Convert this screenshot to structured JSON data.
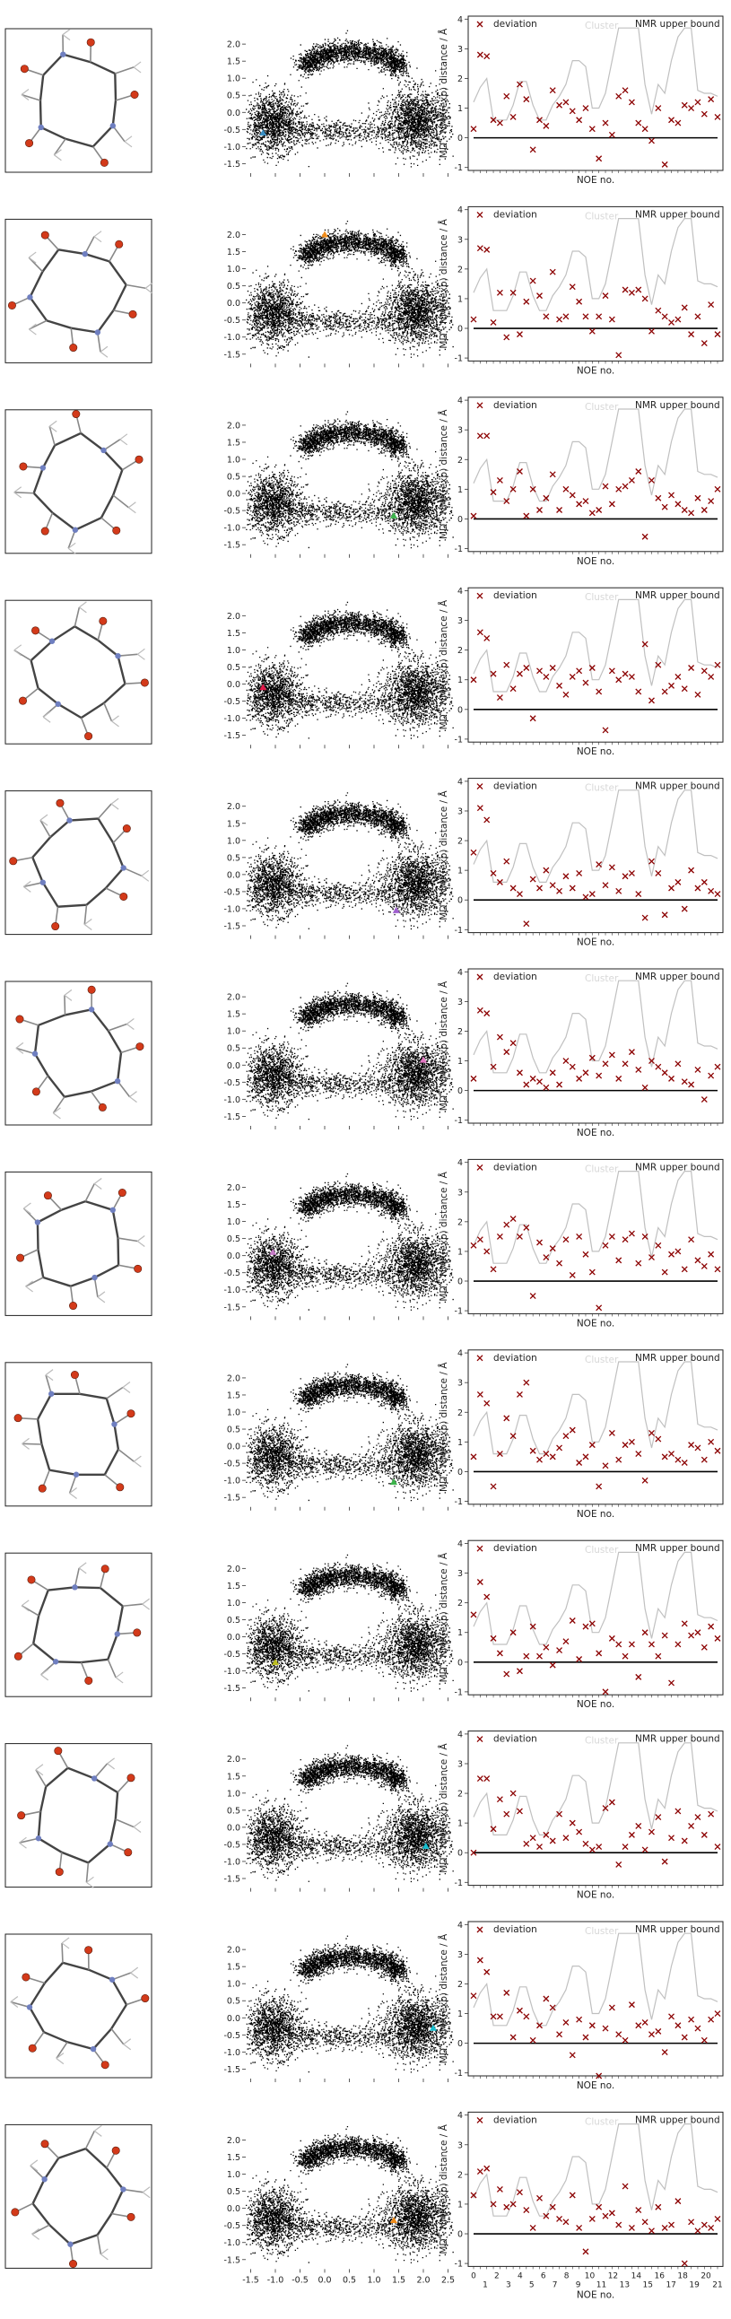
{
  "figure": {
    "scatter_ticks_x": [
      "-1.5",
      "-1.0",
      "-0.5",
      "0.0",
      "0.5",
      "1.0",
      "1.5",
      "2.0",
      "2.5"
    ],
    "scatter_ticks_y": [
      "2.0",
      "1.5",
      "1.0",
      "0.5",
      "0.0",
      "-0.5",
      "-1.0",
      "-1.5"
    ],
    "noe_ylabel": "MD - NMR(exp) distance / Å",
    "noe_xlabel": "NOE no.",
    "noe_ticks_y": [
      "4",
      "3",
      "2",
      "1",
      "0",
      "-1"
    ],
    "legend_deviation": "deviation",
    "legend_bound": "NMR upper bound",
    "legend_cluster": "Cluster",
    "noe_ticks_x_top": [
      "0",
      "2",
      "4",
      "6",
      "8",
      "10",
      "12",
      "14",
      "16",
      "18",
      "20"
    ],
    "noe_ticks_x_bottom": [
      "1",
      "3",
      "5",
      "7",
      "9",
      "11",
      "13",
      "15",
      "17",
      "19",
      "21"
    ],
    "marker_colors": {
      "deviation": "#8b0000",
      "bound": "#c0c0c0",
      "zero_line": "#000000"
    }
  },
  "chart_data": [
    {
      "type": "scatter",
      "panel": 1,
      "marker": {
        "x": -1.25,
        "y": -0.6,
        "color": "#3a8fc4"
      },
      "deviation": [
        0.3,
        2.8,
        2.75,
        0.6,
        0.5,
        1.4,
        0.7,
        1.8,
        1.3,
        -0.4,
        0.6,
        0.4,
        1.6,
        1.1,
        1.2,
        0.9,
        0.6,
        1.0,
        0.3,
        -0.7,
        0.5,
        0.1,
        1.4,
        1.6,
        1.2,
        0.5,
        0.3,
        -0.1,
        1.0,
        -0.9,
        0.6,
        0.5,
        1.1,
        1.0,
        1.2,
        0.8,
        1.3,
        0.7
      ]
    },
    {
      "type": "scatter",
      "panel": 2,
      "marker": {
        "x": 0.0,
        "y": 2.0,
        "color": "#f08c1a"
      },
      "deviation": [
        0.3,
        2.7,
        2.65,
        0.2,
        1.2,
        -0.3,
        1.2,
        -0.2,
        0.9,
        1.6,
        1.1,
        0.4,
        1.9,
        0.3,
        0.4,
        1.4,
        0.9,
        0.4,
        -0.1,
        0.4,
        1.1,
        0.3,
        -0.9,
        1.3,
        1.2,
        1.3,
        1.0,
        -0.1,
        0.6,
        0.4,
        0.2,
        0.3,
        0.7,
        -0.2,
        0.4,
        -0.5,
        0.8,
        -0.2
      ]
    },
    {
      "type": "scatter",
      "panel": 3,
      "marker": {
        "x": 1.4,
        "y": -0.65,
        "color": "#3cb44b"
      },
      "deviation": [
        0.1,
        2.8,
        2.8,
        0.9,
        1.3,
        0.6,
        1.0,
        1.6,
        0.1,
        1.0,
        0.3,
        0.7,
        1.5,
        0.3,
        1.0,
        0.8,
        0.5,
        0.6,
        0.2,
        0.3,
        1.1,
        0.5,
        1.0,
        1.1,
        1.3,
        1.6,
        -0.6,
        1.3,
        0.7,
        0.4,
        0.8,
        0.5,
        0.3,
        0.2,
        0.7,
        0.3,
        0.6,
        1.0
      ]
    },
    {
      "type": "scatter",
      "panel": 4,
      "marker": {
        "x": -1.25,
        "y": -0.1,
        "color": "#e6194b"
      },
      "deviation": [
        1.0,
        2.6,
        2.4,
        1.2,
        0.4,
        1.5,
        0.7,
        1.2,
        1.4,
        -0.3,
        1.3,
        1.1,
        1.4,
        0.8,
        0.5,
        1.1,
        1.3,
        0.9,
        1.4,
        0.6,
        -0.7,
        1.3,
        1.0,
        1.2,
        1.1,
        0.6,
        2.2,
        0.3,
        1.5,
        0.6,
        0.8,
        1.1,
        0.7,
        1.4,
        0.5,
        1.3,
        1.1,
        1.5
      ]
    },
    {
      "type": "scatter",
      "panel": 5,
      "marker": {
        "x": 1.45,
        "y": -1.05,
        "color": "#a05fcf"
      },
      "deviation": [
        1.6,
        3.1,
        2.7,
        0.9,
        0.6,
        1.3,
        0.4,
        0.2,
        -0.8,
        0.7,
        0.4,
        1.0,
        0.5,
        0.3,
        0.8,
        0.4,
        0.9,
        0.1,
        0.2,
        1.2,
        0.5,
        1.1,
        0.3,
        0.8,
        0.9,
        0.2,
        -0.6,
        1.3,
        0.9,
        -0.5,
        0.4,
        0.6,
        -0.3,
        1.0,
        0.4,
        0.6,
        0.3,
        0.2
      ]
    },
    {
      "type": "scatter",
      "panel": 6,
      "marker": {
        "x": 2.0,
        "y": 0.15,
        "color": "#e377c2"
      },
      "deviation": [
        0.4,
        2.7,
        2.6,
        0.8,
        1.8,
        1.3,
        1.6,
        0.6,
        0.2,
        0.4,
        0.3,
        0.1,
        0.6,
        0.2,
        1.0,
        0.8,
        0.4,
        0.6,
        1.1,
        0.5,
        0.9,
        1.2,
        0.4,
        0.9,
        1.3,
        0.7,
        0.1,
        1.0,
        0.8,
        0.6,
        0.4,
        0.9,
        0.3,
        0.2,
        0.7,
        -0.3,
        0.5,
        0.8
      ]
    },
    {
      "type": "scatter",
      "panel": 7,
      "marker": {
        "x": -1.05,
        "y": 0.1,
        "color": "#c77cc7"
      },
      "deviation": [
        1.2,
        1.4,
        1.0,
        0.4,
        1.5,
        1.9,
        2.1,
        1.5,
        1.8,
        -0.5,
        1.3,
        0.8,
        1.1,
        0.6,
        1.4,
        0.2,
        1.5,
        0.9,
        0.3,
        -0.9,
        1.2,
        1.5,
        0.7,
        1.4,
        1.6,
        0.6,
        1.5,
        0.8,
        1.2,
        0.3,
        0.9,
        1.0,
        0.4,
        1.4,
        0.7,
        0.5,
        0.9,
        0.4
      ]
    },
    {
      "type": "scatter",
      "panel": 8,
      "marker": {
        "x": 1.4,
        "y": -1.05,
        "color": "#3cb44b"
      },
      "deviation": [
        0.5,
        2.6,
        2.3,
        -0.5,
        0.6,
        1.8,
        1.2,
        2.6,
        3.0,
        0.7,
        0.4,
        0.6,
        0.5,
        0.8,
        1.2,
        1.4,
        0.3,
        0.5,
        0.9,
        -0.5,
        0.2,
        1.3,
        0.4,
        0.9,
        1.0,
        0.6,
        -0.3,
        1.3,
        1.1,
        0.5,
        0.6,
        0.4,
        0.3,
        0.9,
        0.8,
        0.4,
        1.0,
        0.7
      ]
    },
    {
      "type": "scatter",
      "panel": 9,
      "marker": {
        "x": -1.0,
        "y": -0.75,
        "color": "#bcbd22"
      },
      "deviation": [
        1.6,
        2.7,
        2.2,
        0.8,
        0.3,
        -0.4,
        1.0,
        -0.3,
        0.2,
        1.2,
        0.2,
        0.5,
        -0.1,
        0.4,
        0.7,
        1.4,
        0.1,
        1.2,
        1.3,
        0.3,
        -1.0,
        0.8,
        0.6,
        0.2,
        0.6,
        -0.5,
        1.0,
        0.6,
        0.2,
        0.9,
        -0.7,
        0.6,
        1.3,
        0.9,
        1.0,
        0.5,
        1.2,
        0.8
      ]
    },
    {
      "type": "scatter",
      "panel": 10,
      "marker": {
        "x": 2.05,
        "y": -0.55,
        "color": "#17becf"
      },
      "deviation": [
        0.0,
        2.5,
        2.5,
        0.8,
        1.8,
        1.3,
        2.0,
        1.4,
        0.3,
        0.5,
        0.2,
        0.6,
        0.4,
        1.3,
        0.5,
        1.0,
        0.7,
        0.3,
        0.1,
        0.2,
        1.5,
        1.7,
        -0.4,
        0.2,
        0.6,
        0.9,
        0.1,
        0.7,
        1.2,
        -0.3,
        0.5,
        1.4,
        0.4,
        0.9,
        1.2,
        0.6,
        1.3,
        0.2
      ]
    },
    {
      "type": "scatter",
      "panel": 11,
      "marker": {
        "x": 2.2,
        "y": -0.3,
        "color": "#17becf"
      },
      "deviation": [
        1.6,
        2.8,
        2.4,
        0.9,
        0.9,
        1.7,
        0.2,
        1.1,
        0.9,
        0.1,
        0.6,
        1.5,
        1.2,
        0.3,
        0.7,
        -0.4,
        0.8,
        0.2,
        0.6,
        -1.1,
        0.5,
        1.2,
        0.3,
        0.1,
        1.3,
        0.6,
        0.7,
        0.3,
        0.4,
        -0.3,
        0.9,
        0.6,
        0.2,
        0.8,
        0.5,
        0.1,
        0.8,
        1.0
      ]
    },
    {
      "type": "scatter",
      "panel": 12,
      "marker": {
        "x": 1.4,
        "y": -0.35,
        "color": "#f08c1a"
      },
      "deviation": [
        1.3,
        2.1,
        2.2,
        1.0,
        1.5,
        0.9,
        1.0,
        1.4,
        0.8,
        0.2,
        1.2,
        0.6,
        0.9,
        0.5,
        0.4,
        1.3,
        0.2,
        -0.6,
        0.5,
        0.9,
        0.6,
        0.7,
        0.3,
        1.6,
        0.2,
        0.8,
        0.4,
        0.1,
        0.9,
        0.2,
        0.3,
        1.1,
        -1.0,
        0.4,
        0.1,
        0.3,
        0.2,
        0.5
      ]
    }
  ],
  "nmr_upper_bound": [
    1.2,
    1.7,
    2.0,
    0.6,
    0.6,
    0.6,
    1.1,
    1.9,
    1.9,
    1.1,
    0.6,
    0.6,
    1.1,
    1.4,
    1.8,
    2.6,
    2.6,
    2.4,
    1.0,
    1.0,
    1.5,
    2.6,
    3.7,
    3.7,
    3.7,
    3.7,
    1.8,
    0.8,
    1.8,
    1.5,
    2.6,
    3.4,
    3.7,
    3.7,
    1.6,
    1.5,
    1.5,
    1.4
  ]
}
